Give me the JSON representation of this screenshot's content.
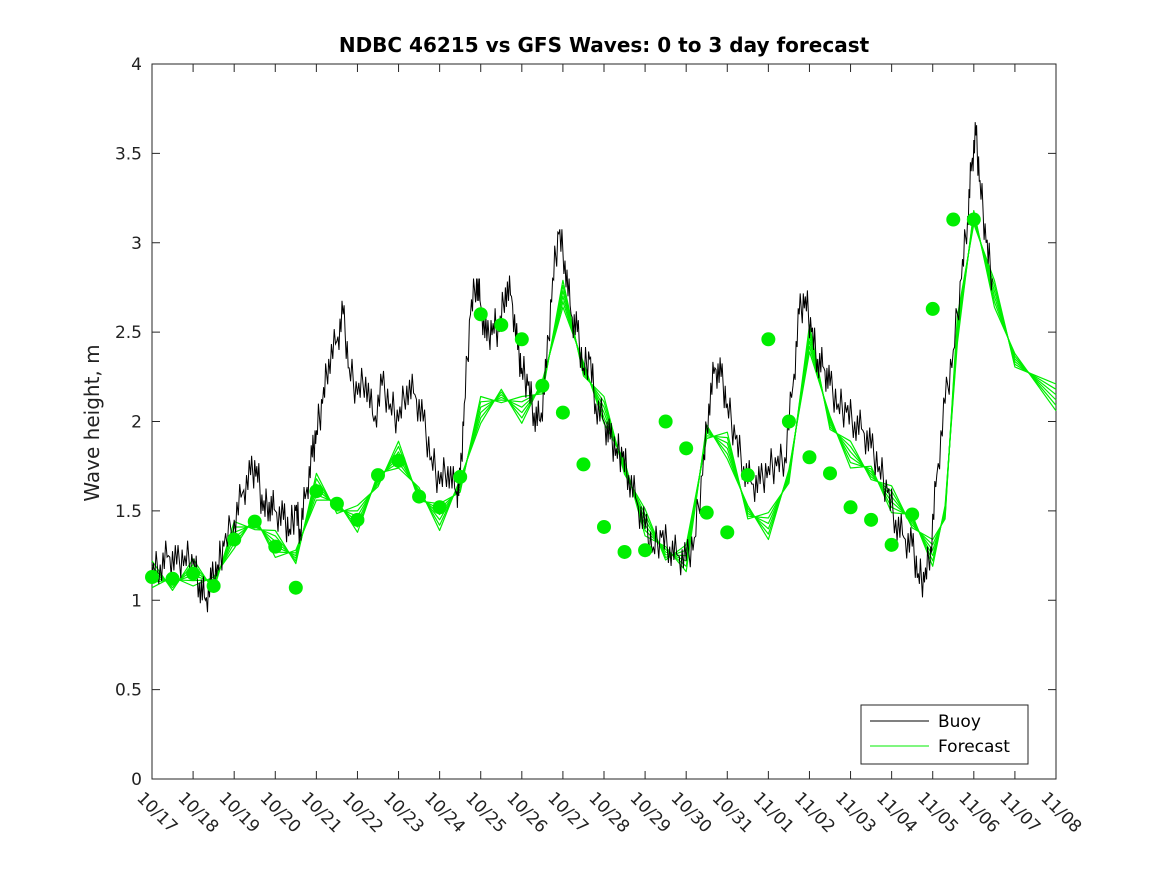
{
  "chart_data": {
    "type": "line",
    "title": "NDBC 46215 vs GFS Waves: 0 to 3 day forecast",
    "xlabel": "",
    "ylabel": "Wave height, m",
    "ylim": [
      0,
      4
    ],
    "yticks": [
      0,
      0.5,
      1,
      1.5,
      2,
      2.5,
      3,
      3.5,
      4
    ],
    "ytick_labels": [
      "0",
      "0.5",
      "1",
      "1.5",
      "2",
      "2.5",
      "3",
      "3.5",
      "4"
    ],
    "xlim": [
      0,
      22
    ],
    "xtick_labels": [
      "10/17",
      "10/18",
      "10/19",
      "10/20",
      "10/21",
      "10/22",
      "10/23",
      "10/24",
      "10/25",
      "10/26",
      "10/27",
      "10/28",
      "10/29",
      "10/30",
      "10/31",
      "11/01",
      "11/02",
      "11/03",
      "11/04",
      "11/05",
      "11/06",
      "11/07",
      "11/08"
    ],
    "x_unit": "days since 10/17",
    "legend": {
      "position": "bottom-right",
      "entries": [
        "Buoy",
        "Forecast"
      ]
    },
    "colors": {
      "buoy": "#000000",
      "forecast": "#00ee00",
      "markers": "#00ee00"
    },
    "buoy_series": {
      "name": "Buoy",
      "points": [
        [
          0,
          1.15
        ],
        [
          0.2,
          1.2
        ],
        [
          0.4,
          1.25
        ],
        [
          0.6,
          1.2
        ],
        [
          0.8,
          1.25
        ],
        [
          1,
          1.2
        ],
        [
          1.15,
          1.1
        ],
        [
          1.3,
          1.0
        ],
        [
          1.45,
          1.1
        ],
        [
          1.6,
          1.2
        ],
        [
          1.75,
          1.3
        ],
        [
          2,
          1.45
        ],
        [
          2.2,
          1.6
        ],
        [
          2.4,
          1.7
        ],
        [
          2.55,
          1.75
        ],
        [
          2.7,
          1.5
        ],
        [
          2.85,
          1.55
        ],
        [
          3,
          1.5
        ],
        [
          3.2,
          1.45
        ],
        [
          3.35,
          1.4
        ],
        [
          3.5,
          1.5
        ],
        [
          3.6,
          1.4
        ],
        [
          3.75,
          1.6
        ],
        [
          3.9,
          1.8
        ],
        [
          4,
          1.95
        ],
        [
          4.15,
          2.1
        ],
        [
          4.3,
          2.35
        ],
        [
          4.5,
          2.45
        ],
        [
          4.65,
          2.6
        ],
        [
          4.8,
          2.3
        ],
        [
          5,
          2.15
        ],
        [
          5.2,
          2.25
        ],
        [
          5.4,
          2.0
        ],
        [
          5.6,
          2.2
        ],
        [
          5.8,
          2.1
        ],
        [
          6,
          2.0
        ],
        [
          6.2,
          2.2
        ],
        [
          6.4,
          2.15
        ],
        [
          6.6,
          2.0
        ],
        [
          6.8,
          1.8
        ],
        [
          7,
          1.65
        ],
        [
          7.2,
          1.75
        ],
        [
          7.4,
          1.6
        ],
        [
          7.5,
          1.65
        ],
        [
          7.6,
          2.1
        ],
        [
          7.75,
          2.6
        ],
        [
          7.9,
          2.8
        ],
        [
          8,
          2.65
        ],
        [
          8.15,
          2.45
        ],
        [
          8.3,
          2.55
        ],
        [
          8.45,
          2.5
        ],
        [
          8.6,
          2.75
        ],
        [
          8.75,
          2.7
        ],
        [
          8.9,
          2.4
        ],
        [
          9,
          2.3
        ],
        [
          9.15,
          2.2
        ],
        [
          9.3,
          2.05
        ],
        [
          9.45,
          2.0
        ],
        [
          9.6,
          2.3
        ],
        [
          9.75,
          2.8
        ],
        [
          9.9,
          3.05
        ],
        [
          10.05,
          2.9
        ],
        [
          10.2,
          2.6
        ],
        [
          10.35,
          2.5
        ],
        [
          10.5,
          2.3
        ],
        [
          10.65,
          2.35
        ],
        [
          10.8,
          2.1
        ],
        [
          11,
          2.0
        ],
        [
          11.15,
          1.9
        ],
        [
          11.3,
          1.85
        ],
        [
          11.45,
          1.8
        ],
        [
          11.6,
          1.7
        ],
        [
          11.8,
          1.55
        ],
        [
          12,
          1.4
        ],
        [
          12.2,
          1.3
        ],
        [
          12.4,
          1.35
        ],
        [
          12.6,
          1.3
        ],
        [
          12.8,
          1.25
        ],
        [
          13,
          1.22
        ],
        [
          13.2,
          1.35
        ],
        [
          13.4,
          1.7
        ],
        [
          13.55,
          2.1
        ],
        [
          13.7,
          2.3
        ],
        [
          13.85,
          2.25
        ],
        [
          14,
          2.1
        ],
        [
          14.2,
          1.9
        ],
        [
          14.4,
          1.75
        ],
        [
          14.6,
          1.65
        ],
        [
          14.8,
          1.65
        ],
        [
          15,
          1.75
        ],
        [
          15.2,
          1.75
        ],
        [
          15.4,
          1.8
        ],
        [
          15.6,
          2.2
        ],
        [
          15.75,
          2.6
        ],
        [
          15.9,
          2.7
        ],
        [
          16.05,
          2.5
        ],
        [
          16.2,
          2.35
        ],
        [
          16.35,
          2.3
        ],
        [
          16.5,
          2.2
        ],
        [
          16.7,
          2.1
        ],
        [
          16.9,
          2.05
        ],
        [
          17.1,
          2.0
        ],
        [
          17.3,
          1.95
        ],
        [
          17.5,
          1.85
        ],
        [
          17.7,
          1.75
        ],
        [
          17.9,
          1.6
        ],
        [
          18.1,
          1.45
        ],
        [
          18.3,
          1.35
        ],
        [
          18.5,
          1.3
        ],
        [
          18.65,
          1.15
        ],
        [
          18.8,
          1.1
        ],
        [
          18.95,
          1.3
        ],
        [
          19.1,
          1.7
        ],
        [
          19.3,
          2.1
        ],
        [
          19.5,
          2.4
        ],
        [
          19.7,
          2.8
        ],
        [
          19.85,
          3.15
        ],
        [
          19.95,
          3.45
        ],
        [
          20.05,
          3.6
        ],
        [
          20.15,
          3.35
        ],
        [
          20.3,
          3.0
        ],
        [
          20.45,
          2.8
        ]
      ]
    },
    "forecast_series": {
      "name": "Forecast",
      "points": [
        [
          0,
          1.13
        ],
        [
          0.5,
          1.1
        ],
        [
          1,
          1.14
        ],
        [
          1.5,
          1.1
        ],
        [
          2,
          1.35
        ],
        [
          2.5,
          1.44
        ],
        [
          3,
          1.3
        ],
        [
          3.5,
          1.25
        ],
        [
          4,
          1.62
        ],
        [
          4.5,
          1.53
        ],
        [
          5,
          1.44
        ],
        [
          5.5,
          1.68
        ],
        [
          6,
          1.8
        ],
        [
          6.5,
          1.6
        ],
        [
          7,
          1.45
        ],
        [
          7.5,
          1.65
        ],
        [
          8,
          2.05
        ],
        [
          8.5,
          2.15
        ],
        [
          9,
          2.05
        ],
        [
          9.5,
          2.2
        ],
        [
          10,
          2.7
        ],
        [
          10.5,
          2.3
        ],
        [
          11,
          2.05
        ],
        [
          11.5,
          1.75
        ],
        [
          12,
          1.42
        ],
        [
          12.5,
          1.27
        ],
        [
          13,
          1.22
        ],
        [
          13.5,
          1.95
        ],
        [
          14,
          1.85
        ],
        [
          14.5,
          1.5
        ],
        [
          15,
          1.4
        ],
        [
          15.5,
          1.7
        ],
        [
          16,
          2.45
        ],
        [
          16.5,
          2.0
        ],
        [
          17,
          1.8
        ],
        [
          17.5,
          1.72
        ],
        [
          18,
          1.55
        ],
        [
          18.5,
          1.45
        ],
        [
          19,
          1.25
        ],
        [
          19.3,
          1.5
        ],
        [
          19.6,
          2.5
        ],
        [
          20,
          3.15
        ],
        [
          20.5,
          2.7
        ],
        [
          21,
          2.35
        ],
        [
          22,
          2.12
        ]
      ]
    },
    "forecast_markers": {
      "x": [
        0,
        0.5,
        1,
        1.5,
        2,
        2.5,
        3,
        3.5,
        4,
        4.5,
        5,
        5.5,
        6,
        6.5,
        7,
        7.5,
        8,
        8.5,
        9,
        9.5,
        10,
        10.5,
        11,
        11.5,
        12,
        12.5,
        13,
        13.5,
        14,
        14.5,
        15,
        15.5,
        16,
        16.5,
        17,
        17.5,
        18,
        18.5,
        19,
        19.5,
        20
      ],
      "y": [
        1.13,
        1.12,
        1.15,
        1.08,
        1.34,
        1.44,
        1.3,
        1.07,
        1.61,
        1.54,
        1.45,
        1.7,
        1.78,
        1.58,
        1.52,
        1.69,
        2.6,
        2.54,
        2.46,
        2.2,
        2.05,
        1.76,
        1.41,
        1.27,
        1.28,
        2.0,
        1.85,
        1.49,
        1.38,
        1.7,
        2.46,
        2.0,
        1.8,
        1.71,
        1.52,
        1.45,
        1.31,
        1.48,
        2.63,
        3.13,
        3.13
      ]
    }
  }
}
